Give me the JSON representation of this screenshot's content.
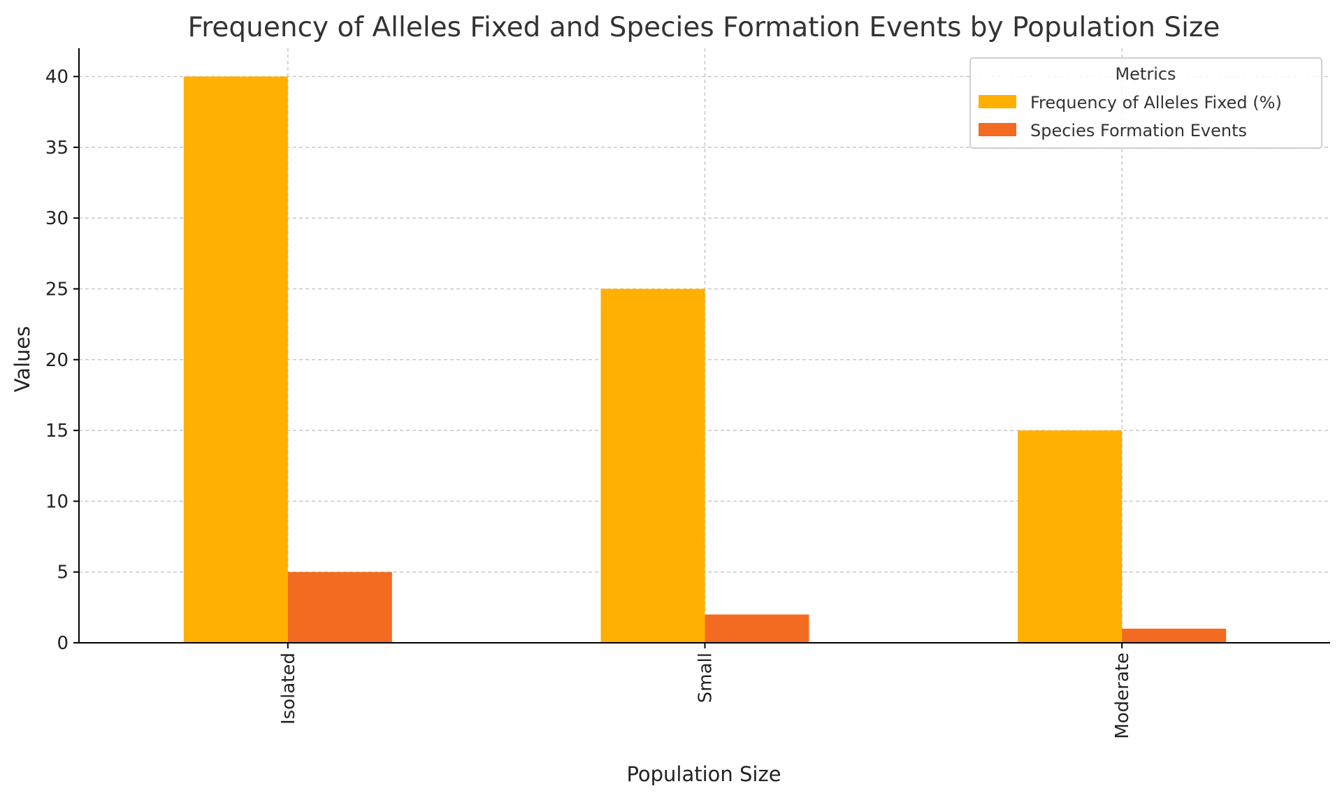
{
  "chart_data": {
    "type": "bar",
    "title": "Frequency of Alleles Fixed and Species Formation Events by Population Size",
    "xlabel": "Population Size",
    "ylabel": "Values",
    "categories": [
      "Isolated",
      "Small",
      "Moderate"
    ],
    "series": [
      {
        "name": "Frequency of Alleles Fixed (%)",
        "values": [
          40,
          25,
          15
        ],
        "color": "#FFB000"
      },
      {
        "name": "Species Formation Events",
        "values": [
          5,
          2,
          1
        ],
        "color": "#F26B21"
      }
    ],
    "ylim": [
      0,
      42
    ],
    "yticks": [
      0,
      5,
      10,
      15,
      20,
      25,
      30,
      35,
      40
    ],
    "grid": true,
    "legend": {
      "title": "Metrics",
      "position": "top-right"
    }
  }
}
